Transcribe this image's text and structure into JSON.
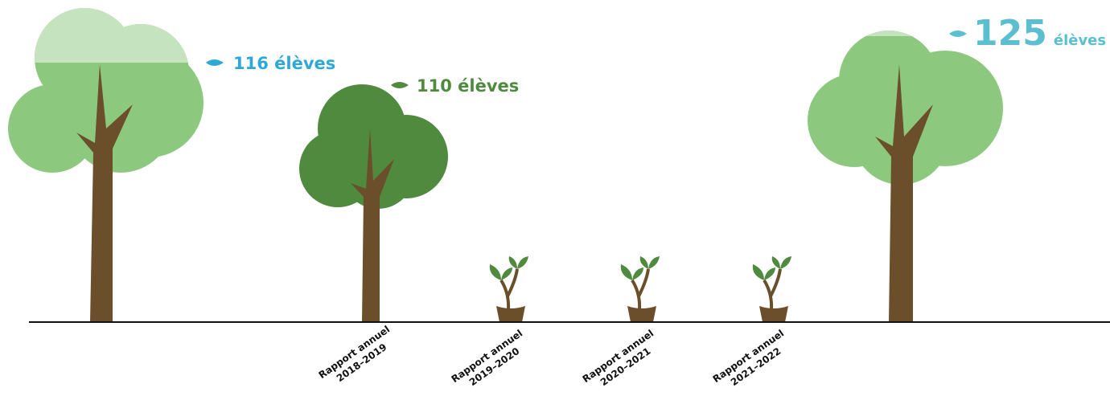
{
  "trees": [
    {
      "number": "116",
      "unit": "élèves"
    },
    {
      "number": "110",
      "unit": "élèves"
    },
    {
      "number": "125",
      "unit": "élèves"
    }
  ],
  "reports": [
    {
      "line1": "Rapport annuel",
      "line2": "2018–2019"
    },
    {
      "line1": "Rapport annuel",
      "line2": "2019–2020"
    },
    {
      "line1": "Rapport annuel",
      "line2": "2020–2021"
    },
    {
      "line1": "Rapport annuel",
      "line2": "2021–2022"
    }
  ]
}
